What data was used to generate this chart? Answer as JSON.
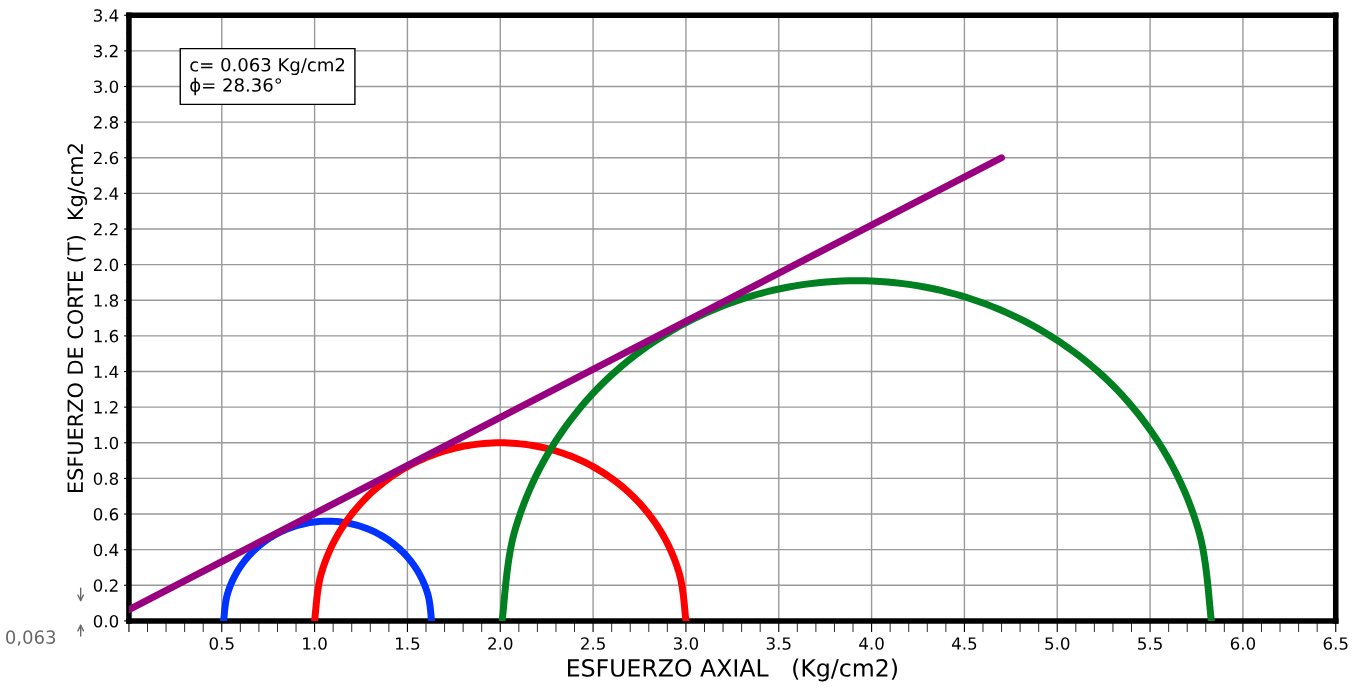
{
  "chart_data": {
    "type": "line",
    "xlabel": "ESFUERZO AXIAL   (Kg/cm2)",
    "ylabel": "ESFUERZO DE CORTE (T)  Kg/cm2",
    "annotations": [
      "c= 0.063 Kg/cm2\nϕ= 28.36°",
      "0,063"
    ],
    "series": [
      {
        "color": "#0033ff",
        "x": [
          0.51,
          0.529,
          0.585,
          0.674,
          0.79,
          0.925,
          1.07,
          1.215,
          1.35,
          1.466,
          1.555,
          1.611,
          1.63
        ],
        "values": [
          0,
          0.145,
          0.28,
          0.396,
          0.485,
          0.541,
          0.56,
          0.541,
          0.485,
          0.396,
          0.28,
          0.145,
          0
        ]
      },
      {
        "color": "#ff0000",
        "x": [
          1.0,
          1.034,
          1.134,
          1.293,
          1.5,
          1.741,
          2.0,
          2.259,
          2.5,
          2.707,
          2.866,
          2.966,
          3.0
        ],
        "values": [
          0,
          0.259,
          0.5,
          0.707,
          0.866,
          0.966,
          1.0,
          0.966,
          0.866,
          0.707,
          0.5,
          0.259,
          0
        ]
      },
      {
        "color": "#008020",
        "x": [
          2.01,
          2.075,
          2.266,
          2.569,
          2.965,
          3.426,
          3.92,
          4.414,
          4.875,
          5.271,
          5.574,
          5.765,
          5.83
        ],
        "values": [
          0,
          0.494,
          0.955,
          1.351,
          1.654,
          1.845,
          1.91,
          1.845,
          1.654,
          1.351,
          0.955,
          0.494,
          0
        ]
      },
      {
        "color": "#990080",
        "x": [
          0,
          4.7
        ],
        "values": [
          0.063,
          2.6
        ]
      }
    ],
    "xlim": [
      0,
      6.5
    ],
    "ylim": [
      0,
      3.4
    ],
    "xticks": [
      {
        "value": 0,
        "label": null
      },
      0.5,
      {
        "value": 1,
        "label": "1.0"
      },
      1.5,
      {
        "value": 2,
        "label": "2.0"
      },
      2.5,
      {
        "value": 3,
        "label": "3.0"
      },
      3.5,
      {
        "value": 4,
        "label": "4.0"
      },
      4.5,
      {
        "value": 5,
        "label": "5.0"
      },
      5.5,
      {
        "value": 6,
        "label": "6.0"
      },
      6.5
    ],
    "yticks": [
      {
        "value": 0,
        "label": "0.0"
      },
      0.2,
      0.4,
      0.6,
      0.8,
      {
        "value": 1,
        "label": "1.0"
      },
      1.2,
      1.4,
      1.6,
      1.8,
      {
        "value": 2,
        "label": "2.0"
      },
      2.2,
      2.4,
      2.6,
      2.8,
      {
        "value": 3,
        "label": "3.0"
      },
      3.2,
      3.4
    ],
    "grid": true,
    "legend": false,
    "marker": "none",
    "line_style": "solid"
  }
}
